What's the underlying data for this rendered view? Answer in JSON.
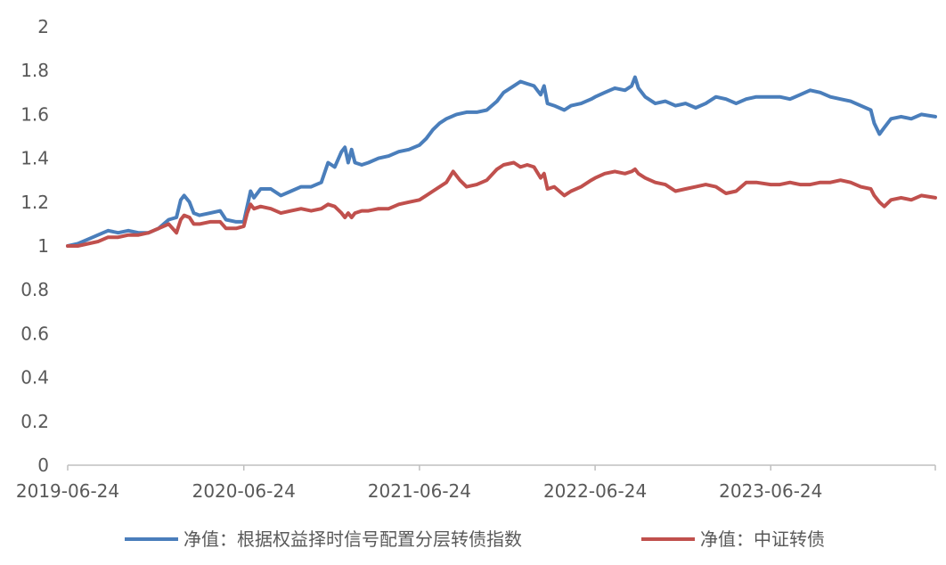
{
  "chart_data": {
    "type": "line",
    "title": "",
    "xlabel": "",
    "ylabel": "",
    "ylim": [
      0,
      2
    ],
    "yticks": [
      "0",
      "0.2",
      "0.4",
      "0.6",
      "0.8",
      "1",
      "1.2",
      "1.4",
      "1.6",
      "1.8",
      "2"
    ],
    "xlim": [
      "2019-06-24",
      "2024-05-31"
    ],
    "xticks": [
      "2019-06-24",
      "2020-06-24",
      "2021-06-24",
      "2022-06-24",
      "2023-06-24"
    ],
    "grid": false,
    "legend_position": "bottom",
    "series": [
      {
        "name": "净值：根据权益择时信号配置分层转债指数",
        "color": "#4a7ebb",
        "points": [
          [
            "2019-06-24",
            1.0
          ],
          [
            "2019-07-15",
            1.01
          ],
          [
            "2019-08-05",
            1.03
          ],
          [
            "2019-08-26",
            1.05
          ],
          [
            "2019-09-16",
            1.07
          ],
          [
            "2019-10-07",
            1.06
          ],
          [
            "2019-10-28",
            1.07
          ],
          [
            "2019-11-18",
            1.06
          ],
          [
            "2019-12-09",
            1.06
          ],
          [
            "2019-12-30",
            1.08
          ],
          [
            "2020-01-20",
            1.12
          ],
          [
            "2020-02-05",
            1.13
          ],
          [
            "2020-02-14",
            1.21
          ],
          [
            "2020-02-21",
            1.23
          ],
          [
            "2020-03-03",
            1.2
          ],
          [
            "2020-03-12",
            1.15
          ],
          [
            "2020-03-24",
            1.14
          ],
          [
            "2020-04-15",
            1.15
          ],
          [
            "2020-05-06",
            1.16
          ],
          [
            "2020-05-18",
            1.12
          ],
          [
            "2020-06-08",
            1.11
          ],
          [
            "2020-06-24",
            1.11
          ],
          [
            "2020-07-01",
            1.18
          ],
          [
            "2020-07-08",
            1.25
          ],
          [
            "2020-07-15",
            1.22
          ],
          [
            "2020-07-29",
            1.26
          ],
          [
            "2020-08-19",
            1.26
          ],
          [
            "2020-09-09",
            1.23
          ],
          [
            "2020-09-30",
            1.25
          ],
          [
            "2020-10-21",
            1.27
          ],
          [
            "2020-11-11",
            1.27
          ],
          [
            "2020-12-02",
            1.29
          ],
          [
            "2020-12-16",
            1.38
          ],
          [
            "2020-12-30",
            1.36
          ],
          [
            "2021-01-13",
            1.43
          ],
          [
            "2021-01-20",
            1.45
          ],
          [
            "2021-01-27",
            1.38
          ],
          [
            "2021-02-03",
            1.44
          ],
          [
            "2021-02-10",
            1.38
          ],
          [
            "2021-02-24",
            1.37
          ],
          [
            "2021-03-10",
            1.38
          ],
          [
            "2021-03-31",
            1.4
          ],
          [
            "2021-04-21",
            1.41
          ],
          [
            "2021-05-12",
            1.43
          ],
          [
            "2021-06-02",
            1.44
          ],
          [
            "2021-06-24",
            1.46
          ],
          [
            "2021-07-08",
            1.49
          ],
          [
            "2021-07-22",
            1.53
          ],
          [
            "2021-08-05",
            1.56
          ],
          [
            "2021-08-19",
            1.58
          ],
          [
            "2021-09-09",
            1.6
          ],
          [
            "2021-09-30",
            1.61
          ],
          [
            "2021-10-21",
            1.61
          ],
          [
            "2021-11-11",
            1.62
          ],
          [
            "2021-12-02",
            1.66
          ],
          [
            "2021-12-16",
            1.7
          ],
          [
            "2022-01-06",
            1.73
          ],
          [
            "2022-01-20",
            1.75
          ],
          [
            "2022-02-03",
            1.74
          ],
          [
            "2022-02-17",
            1.73
          ],
          [
            "2022-03-03",
            1.69
          ],
          [
            "2022-03-10",
            1.73
          ],
          [
            "2022-03-17",
            1.65
          ],
          [
            "2022-03-31",
            1.64
          ],
          [
            "2022-04-21",
            1.62
          ],
          [
            "2022-05-05",
            1.64
          ],
          [
            "2022-05-26",
            1.65
          ],
          [
            "2022-06-16",
            1.67
          ],
          [
            "2022-06-24",
            1.68
          ],
          [
            "2022-07-14",
            1.7
          ],
          [
            "2022-08-04",
            1.72
          ],
          [
            "2022-08-25",
            1.71
          ],
          [
            "2022-09-08",
            1.73
          ],
          [
            "2022-09-15",
            1.77
          ],
          [
            "2022-09-22",
            1.72
          ],
          [
            "2022-10-06",
            1.68
          ],
          [
            "2022-10-27",
            1.65
          ],
          [
            "2022-11-17",
            1.66
          ],
          [
            "2022-12-08",
            1.64
          ],
          [
            "2022-12-29",
            1.65
          ],
          [
            "2023-01-19",
            1.63
          ],
          [
            "2023-02-09",
            1.65
          ],
          [
            "2023-03-02",
            1.68
          ],
          [
            "2023-03-23",
            1.67
          ],
          [
            "2023-04-13",
            1.65
          ],
          [
            "2023-05-04",
            1.67
          ],
          [
            "2023-05-25",
            1.68
          ],
          [
            "2023-06-24",
            1.68
          ],
          [
            "2023-07-13",
            1.68
          ],
          [
            "2023-08-03",
            1.67
          ],
          [
            "2023-08-24",
            1.69
          ],
          [
            "2023-09-14",
            1.71
          ],
          [
            "2023-10-05",
            1.7
          ],
          [
            "2023-10-26",
            1.68
          ],
          [
            "2023-11-16",
            1.67
          ],
          [
            "2023-12-07",
            1.66
          ],
          [
            "2023-12-28",
            1.64
          ],
          [
            "2024-01-18",
            1.62
          ],
          [
            "2024-01-25",
            1.56
          ],
          [
            "2024-02-05",
            1.51
          ],
          [
            "2024-02-15",
            1.54
          ],
          [
            "2024-02-29",
            1.58
          ],
          [
            "2024-03-21",
            1.59
          ],
          [
            "2024-04-11",
            1.58
          ],
          [
            "2024-05-02",
            1.6
          ],
          [
            "2024-05-31",
            1.59
          ]
        ]
      },
      {
        "name": "净值：中证转债",
        "color": "#c0504d",
        "points": [
          [
            "2019-06-24",
            1.0
          ],
          [
            "2019-07-15",
            1.0
          ],
          [
            "2019-08-05",
            1.01
          ],
          [
            "2019-08-26",
            1.02
          ],
          [
            "2019-09-16",
            1.04
          ],
          [
            "2019-10-07",
            1.04
          ],
          [
            "2019-10-28",
            1.05
          ],
          [
            "2019-11-18",
            1.05
          ],
          [
            "2019-12-09",
            1.06
          ],
          [
            "2019-12-30",
            1.08
          ],
          [
            "2020-01-20",
            1.1
          ],
          [
            "2020-02-05",
            1.06
          ],
          [
            "2020-02-14",
            1.12
          ],
          [
            "2020-02-21",
            1.14
          ],
          [
            "2020-03-03",
            1.13
          ],
          [
            "2020-03-12",
            1.1
          ],
          [
            "2020-03-24",
            1.1
          ],
          [
            "2020-04-15",
            1.11
          ],
          [
            "2020-05-06",
            1.11
          ],
          [
            "2020-05-18",
            1.08
          ],
          [
            "2020-06-08",
            1.08
          ],
          [
            "2020-06-24",
            1.09
          ],
          [
            "2020-07-01",
            1.15
          ],
          [
            "2020-07-08",
            1.19
          ],
          [
            "2020-07-15",
            1.17
          ],
          [
            "2020-07-29",
            1.18
          ],
          [
            "2020-08-19",
            1.17
          ],
          [
            "2020-09-09",
            1.15
          ],
          [
            "2020-09-30",
            1.16
          ],
          [
            "2020-10-21",
            1.17
          ],
          [
            "2020-11-11",
            1.16
          ],
          [
            "2020-12-02",
            1.17
          ],
          [
            "2020-12-16",
            1.19
          ],
          [
            "2020-12-30",
            1.18
          ],
          [
            "2021-01-13",
            1.15
          ],
          [
            "2021-01-20",
            1.13
          ],
          [
            "2021-01-27",
            1.15
          ],
          [
            "2021-02-03",
            1.13
          ],
          [
            "2021-02-10",
            1.15
          ],
          [
            "2021-02-24",
            1.16
          ],
          [
            "2021-03-10",
            1.16
          ],
          [
            "2021-03-31",
            1.17
          ],
          [
            "2021-04-21",
            1.17
          ],
          [
            "2021-05-12",
            1.19
          ],
          [
            "2021-06-02",
            1.2
          ],
          [
            "2021-06-24",
            1.21
          ],
          [
            "2021-07-08",
            1.23
          ],
          [
            "2021-07-22",
            1.25
          ],
          [
            "2021-08-05",
            1.27
          ],
          [
            "2021-08-19",
            1.29
          ],
          [
            "2021-09-02",
            1.34
          ],
          [
            "2021-09-16",
            1.3
          ],
          [
            "2021-09-30",
            1.27
          ],
          [
            "2021-10-21",
            1.28
          ],
          [
            "2021-11-11",
            1.3
          ],
          [
            "2021-12-02",
            1.35
          ],
          [
            "2021-12-16",
            1.37
          ],
          [
            "2022-01-06",
            1.38
          ],
          [
            "2022-01-20",
            1.36
          ],
          [
            "2022-02-03",
            1.37
          ],
          [
            "2022-02-17",
            1.36
          ],
          [
            "2022-03-03",
            1.31
          ],
          [
            "2022-03-10",
            1.33
          ],
          [
            "2022-03-17",
            1.26
          ],
          [
            "2022-03-31",
            1.27
          ],
          [
            "2022-04-21",
            1.23
          ],
          [
            "2022-05-05",
            1.25
          ],
          [
            "2022-05-26",
            1.27
          ],
          [
            "2022-06-16",
            1.3
          ],
          [
            "2022-06-24",
            1.31
          ],
          [
            "2022-07-14",
            1.33
          ],
          [
            "2022-08-04",
            1.34
          ],
          [
            "2022-08-25",
            1.33
          ],
          [
            "2022-09-08",
            1.34
          ],
          [
            "2022-09-15",
            1.35
          ],
          [
            "2022-09-22",
            1.33
          ],
          [
            "2022-10-06",
            1.31
          ],
          [
            "2022-10-27",
            1.29
          ],
          [
            "2022-11-17",
            1.28
          ],
          [
            "2022-12-08",
            1.25
          ],
          [
            "2022-12-29",
            1.26
          ],
          [
            "2023-01-19",
            1.27
          ],
          [
            "2023-02-09",
            1.28
          ],
          [
            "2023-03-02",
            1.27
          ],
          [
            "2023-03-23",
            1.24
          ],
          [
            "2023-04-13",
            1.25
          ],
          [
            "2023-05-04",
            1.29
          ],
          [
            "2023-05-25",
            1.29
          ],
          [
            "2023-06-24",
            1.28
          ],
          [
            "2023-07-13",
            1.28
          ],
          [
            "2023-08-03",
            1.29
          ],
          [
            "2023-08-24",
            1.28
          ],
          [
            "2023-09-14",
            1.28
          ],
          [
            "2023-10-05",
            1.29
          ],
          [
            "2023-10-26",
            1.29
          ],
          [
            "2023-11-16",
            1.3
          ],
          [
            "2023-12-07",
            1.29
          ],
          [
            "2023-12-28",
            1.27
          ],
          [
            "2024-01-18",
            1.26
          ],
          [
            "2024-01-25",
            1.23
          ],
          [
            "2024-02-05",
            1.2
          ],
          [
            "2024-02-15",
            1.18
          ],
          [
            "2024-02-29",
            1.21
          ],
          [
            "2024-03-21",
            1.22
          ],
          [
            "2024-04-11",
            1.21
          ],
          [
            "2024-05-02",
            1.23
          ],
          [
            "2024-05-31",
            1.22
          ]
        ]
      }
    ]
  }
}
